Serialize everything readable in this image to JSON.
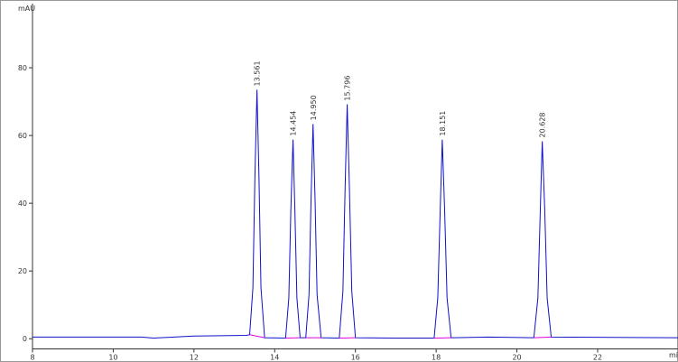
{
  "chart_data": {
    "type": "line",
    "y_label": "mAU",
    "x_label": "mi",
    "xlim": [
      8,
      24
    ],
    "ylim": [
      -3,
      100
    ],
    "xticks": [
      8,
      10,
      12,
      14,
      16,
      18,
      20,
      22
    ],
    "yticks": [
      0,
      20,
      40,
      60,
      80
    ],
    "series": [
      {
        "color": "#1010c8",
        "x": [
          8,
          10.7,
          11,
          12,
          13.3,
          13.38,
          13.46,
          13.51,
          13.561,
          13.61,
          13.66,
          13.75,
          14.27,
          14.35,
          14.4,
          14.454,
          14.5,
          14.55,
          14.63,
          14.77,
          14.85,
          14.9,
          14.95,
          15.0,
          15.05,
          15.15,
          15.6,
          15.69,
          15.745,
          15.796,
          15.85,
          15.91,
          16.0,
          17.0,
          17.95,
          18.04,
          18.1,
          18.151,
          18.21,
          18.27,
          18.37,
          19.3,
          20.42,
          20.52,
          20.58,
          20.628,
          20.69,
          20.75,
          20.85,
          24
        ],
        "values": [
          0.5,
          0.5,
          0.2,
          0.8,
          1.0,
          1.2,
          15,
          48,
          73.5,
          48,
          15,
          0.3,
          0.2,
          12,
          38,
          58.8,
          38,
          12,
          0.3,
          0.3,
          13,
          41,
          63.4,
          41,
          13,
          0.3,
          0.2,
          14,
          45,
          69.2,
          45,
          14,
          0.3,
          0.2,
          0.2,
          12,
          38,
          58.8,
          38,
          12,
          0.3,
          0.5,
          0.3,
          12,
          38,
          58.3,
          38,
          12,
          0.5,
          0.3
        ]
      },
      {
        "color": "#e000e0",
        "x": [
          13.38,
          13.75,
          13.8,
          14.27,
          14.63,
          14.7,
          14.77,
          15.15,
          15.2,
          15.6,
          16.0,
          16.05,
          17.95,
          18.37,
          18.4,
          20.42,
          20.85
        ],
        "values": [
          1.2,
          0.3,
          null,
          0.2,
          0.3,
          null,
          0.3,
          0.3,
          null,
          0.2,
          0.3,
          null,
          0.2,
          0.3,
          null,
          0.3,
          0.5
        ]
      }
    ],
    "peaks": [
      {
        "time": 13.561,
        "height": 73.5,
        "label": "13.561"
      },
      {
        "time": 14.454,
        "height": 58.8,
        "label": "14.454"
      },
      {
        "time": 14.95,
        "height": 63.4,
        "label": "14.950"
      },
      {
        "time": 15.796,
        "height": 69.2,
        "label": "15.796"
      },
      {
        "time": 18.151,
        "height": 58.8,
        "label": "18.151"
      },
      {
        "time": 20.628,
        "height": 58.3,
        "label": "20.628"
      }
    ]
  }
}
